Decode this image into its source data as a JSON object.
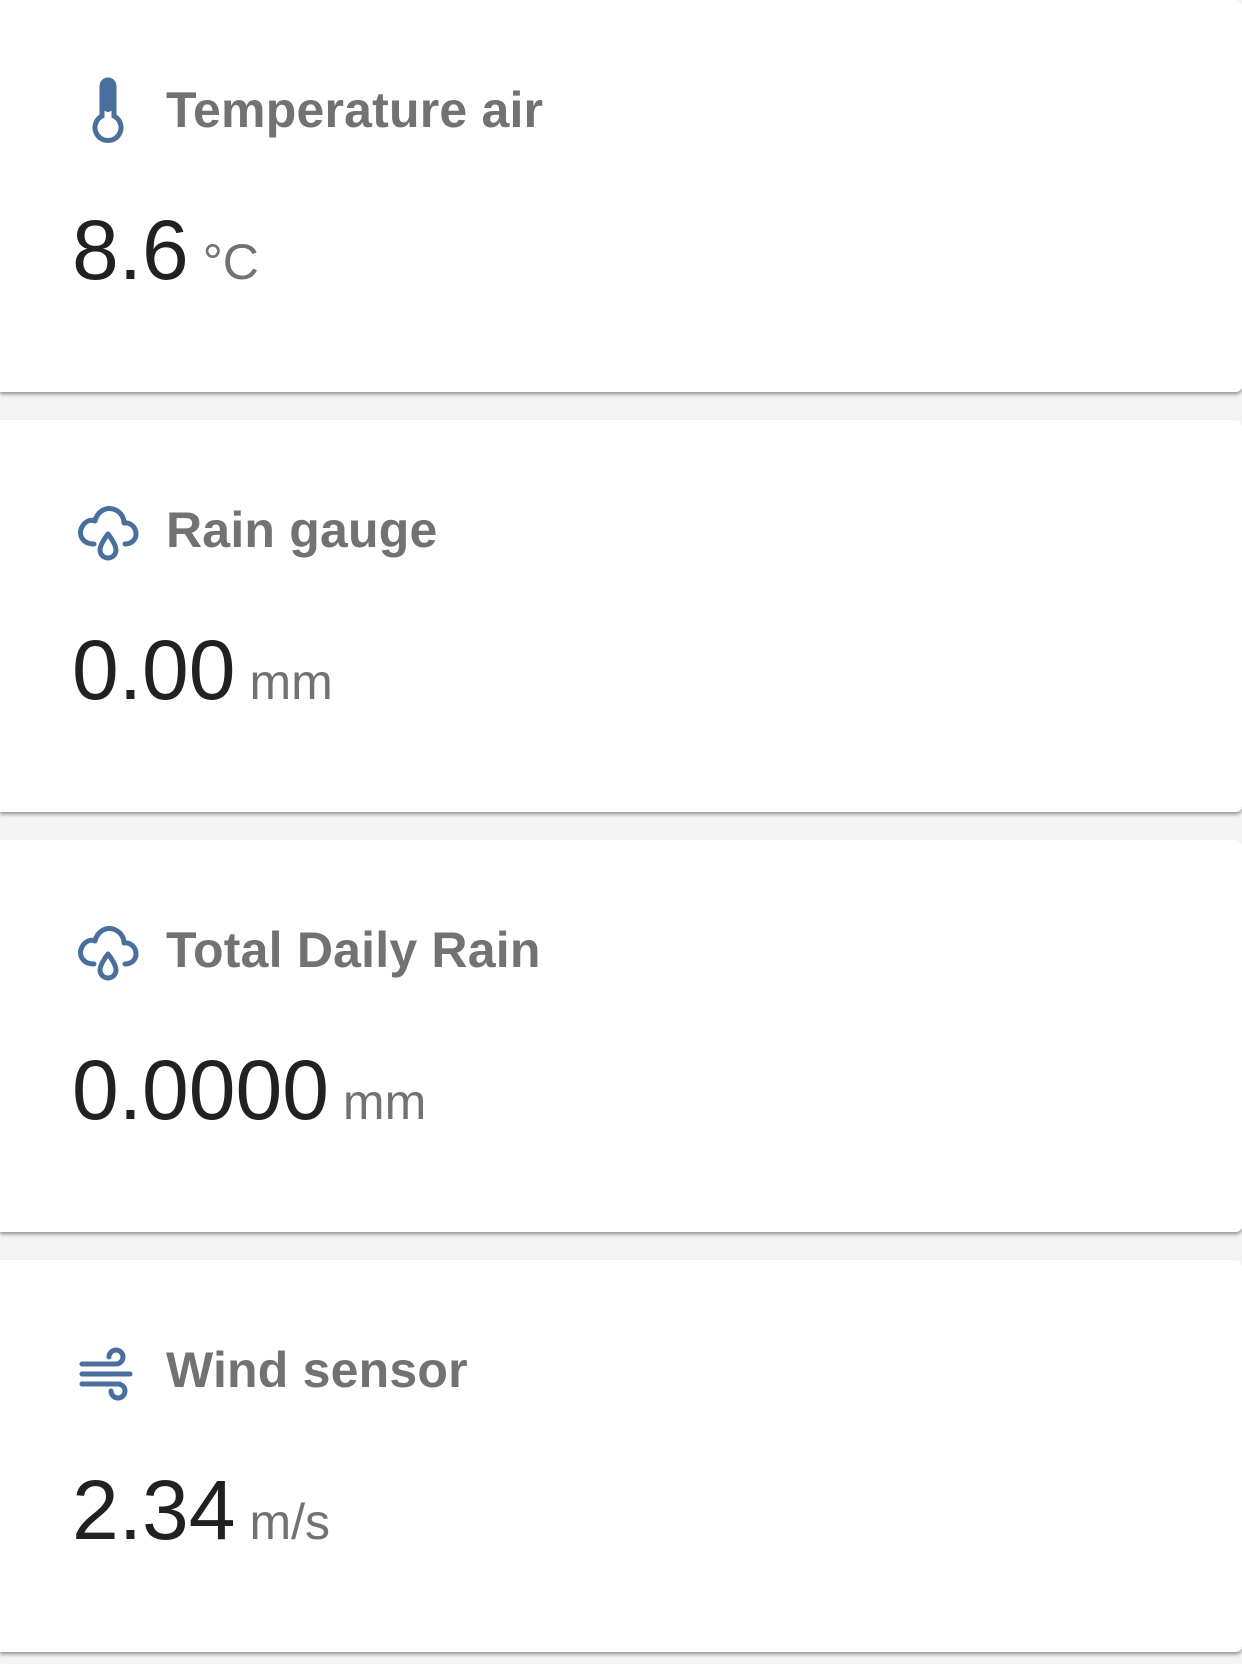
{
  "accent_color": "#4a6f9c",
  "cards": [
    {
      "icon": "thermometer-icon",
      "title": "Temperature air",
      "value": "8.6",
      "unit": "°C"
    },
    {
      "icon": "rain-cloud-icon",
      "title": "Rain gauge",
      "value": "0.00",
      "unit": "mm"
    },
    {
      "icon": "rain-cloud-icon",
      "title": "Total Daily Rain",
      "value": "0.0000",
      "unit": "mm"
    },
    {
      "icon": "wind-icon",
      "title": "Wind sensor",
      "value": "2.34",
      "unit": "m/s"
    }
  ]
}
